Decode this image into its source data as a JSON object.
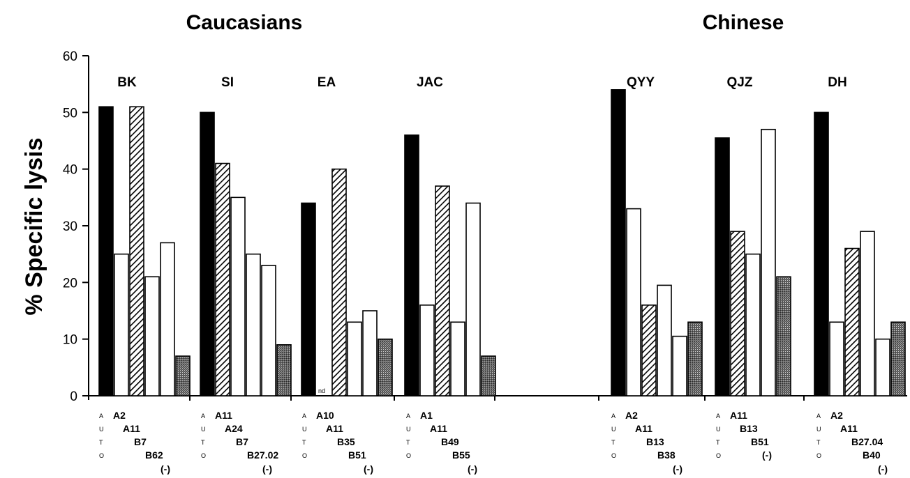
{
  "chart_data": {
    "type": "bar",
    "ylabel": "% Specific lysis",
    "ylim": [
      0,
      60
    ],
    "yticks": [
      0,
      10,
      20,
      30,
      40,
      50,
      60
    ],
    "groups": [
      {
        "name": "Caucasians",
        "donors": [
          "BK",
          "SI",
          "EA",
          "JAC"
        ]
      },
      {
        "name": "Chinese",
        "donors": [
          "QYY",
          "QJZ",
          "DH"
        ]
      }
    ],
    "series": [
      {
        "name": "A",
        "fill": "solid"
      },
      {
        "name": "A",
        "fill": "white"
      },
      {
        "name": "B",
        "fill": "hatched"
      },
      {
        "name": "B",
        "fill": "white"
      },
      {
        "name": "(-)",
        "fill": "stipple"
      }
    ],
    "allele_row_letters": [
      "A",
      "U",
      "T",
      "O"
    ],
    "donors": [
      {
        "donor": "BK",
        "group": "Caucasians",
        "alleles": [
          "A2",
          "A11",
          "B7",
          "B62",
          "(-)"
        ],
        "values": [
          51,
          25,
          51,
          21,
          27,
          7
        ],
        "fills": [
          "solid",
          "white",
          "hatched",
          "white",
          "white",
          "stipple"
        ]
      },
      {
        "donor": "SI",
        "group": "Caucasians",
        "alleles": [
          "A11",
          "A24",
          "B7",
          "B27.02",
          "(-)"
        ],
        "values": [
          50,
          41,
          35,
          25,
          23,
          9
        ],
        "fills": [
          "solid",
          "hatched",
          "white",
          "white",
          "white",
          "stipple"
        ]
      },
      {
        "donor": "EA",
        "group": "Caucasians",
        "alleles": [
          "A10",
          "A11",
          "B35",
          "B51",
          "(-)"
        ],
        "values": [
          34,
          null,
          40,
          13,
          15,
          10
        ],
        "fills": [
          "solid",
          "nd",
          "hatched",
          "white",
          "white",
          "stipple"
        ],
        "nd_label": "nd"
      },
      {
        "donor": "JAC",
        "group": "Caucasians",
        "alleles": [
          "A1",
          "A11",
          "B49",
          "B55",
          "(-)"
        ],
        "values": [
          46,
          16,
          37,
          13,
          34,
          7
        ],
        "fills": [
          "solid",
          "white",
          "hatched",
          "white",
          "white",
          "stipple"
        ]
      },
      {
        "donor": "QYY",
        "group": "Chinese",
        "alleles": [
          "A2",
          "A11",
          "B13",
          "B38",
          "(-)"
        ],
        "values": [
          54,
          33,
          16,
          19.5,
          10.5,
          13
        ],
        "fills": [
          "solid",
          "white",
          "hatched",
          "white",
          "white",
          "stipple"
        ]
      },
      {
        "donor": "QJZ",
        "group": "Chinese",
        "alleles": [
          "A11",
          "B13",
          "B51",
          "(-)"
        ],
        "values": [
          45.5,
          29,
          25,
          47,
          21
        ],
        "fills": [
          "solid",
          "hatched",
          "white",
          "white",
          "stipple"
        ]
      },
      {
        "donor": "DH",
        "group": "Chinese",
        "alleles": [
          "A2",
          "A11",
          "B27.04",
          "B40",
          "(-)"
        ],
        "values": [
          50,
          13,
          26,
          29,
          10,
          13
        ],
        "fills": [
          "solid",
          "white",
          "hatched",
          "white",
          "white",
          "stipple"
        ]
      }
    ]
  }
}
